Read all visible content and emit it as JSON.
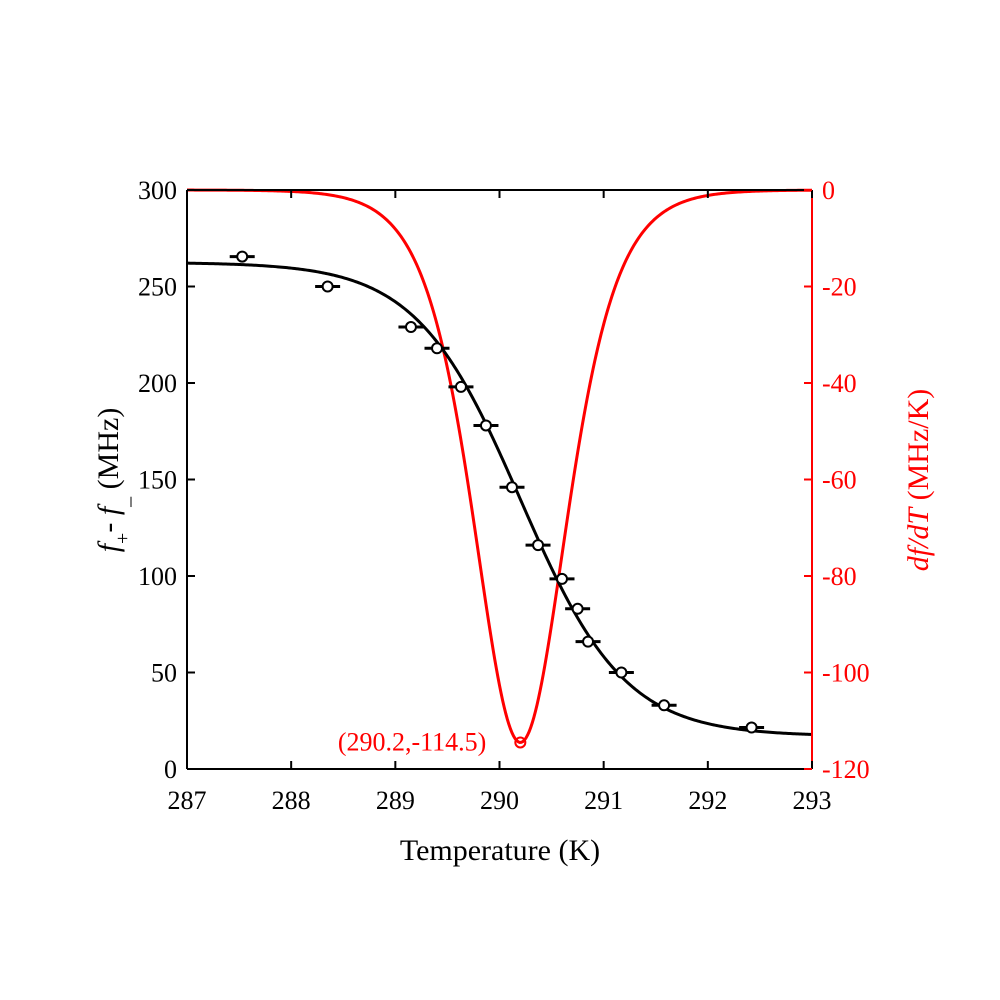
{
  "chart_data": {
    "type": "scatter",
    "xlabel": "Temperature (K)",
    "ylabel_left": {
      "base1": "f",
      "sub1": "+",
      "op": "- ",
      "base2": "f",
      "sub2": "_",
      "unit": " (MHz)"
    },
    "ylabel_right": {
      "italic": "df/dT",
      "unit": " (MHz/K)"
    },
    "xlim": [
      287,
      293
    ],
    "ylim_left": [
      0,
      300
    ],
    "ylim_right": [
      -120,
      0
    ],
    "x_ticks": [
      "287",
      "288",
      "289",
      "290",
      "291",
      "292",
      "293"
    ],
    "y_left_ticks": [
      "0",
      "50",
      "100",
      "150",
      "200",
      "250",
      "300"
    ],
    "y_right_ticks": [
      "-120",
      "-100",
      "-80",
      "-60",
      "-40",
      "-20",
      "0"
    ],
    "grid": false,
    "colors": {
      "left": "#000000",
      "right": "#ff0000"
    },
    "series": [
      {
        "axis": "left",
        "style": "markers with horizontal error bars",
        "points": [
          {
            "x": 287.53,
            "y": 265.5,
            "xerr": 0.12
          },
          {
            "x": 288.35,
            "y": 250.0,
            "xerr": 0.12
          },
          {
            "x": 289.15,
            "y": 229.0,
            "xerr": 0.12
          },
          {
            "x": 289.4,
            "y": 218.0,
            "xerr": 0.12
          },
          {
            "x": 289.63,
            "y": 198.0,
            "xerr": 0.12
          },
          {
            "x": 289.87,
            "y": 178.0,
            "xerr": 0.12
          },
          {
            "x": 290.12,
            "y": 146.0,
            "xerr": 0.12
          },
          {
            "x": 290.37,
            "y": 116.0,
            "xerr": 0.12
          },
          {
            "x": 290.6,
            "y": 98.5,
            "xerr": 0.12
          },
          {
            "x": 290.75,
            "y": 83.0,
            "xerr": 0.12
          },
          {
            "x": 290.85,
            "y": 66.0,
            "xerr": 0.12
          },
          {
            "x": 291.17,
            "y": 50.0,
            "xerr": 0.12
          },
          {
            "x": 291.58,
            "y": 33.0,
            "xerr": 0.12
          },
          {
            "x": 292.42,
            "y": 21.5,
            "xerr": 0.12
          }
        ]
      },
      {
        "axis": "left",
        "style": "fit line",
        "model": {
          "lower": 17,
          "upper": 262.5,
          "center": 290.2,
          "width": 0.5
        }
      },
      {
        "axis": "right",
        "style": "derivative line",
        "model": {
          "min": -114.5,
          "center": 290.2,
          "width": 0.6
        }
      }
    ],
    "annotations": [
      {
        "text": "(290.2,-114.5)",
        "x": 290.2,
        "y": -114.5,
        "axis": "right"
      }
    ]
  }
}
